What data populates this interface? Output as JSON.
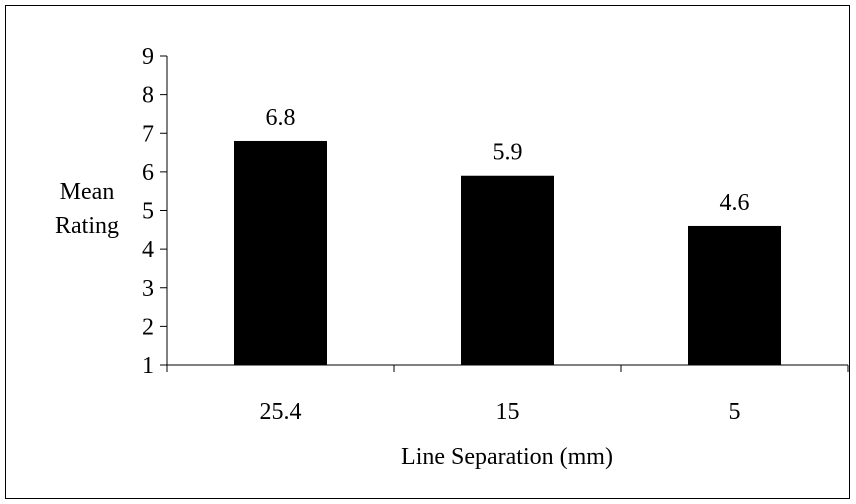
{
  "chart_data": {
    "type": "bar",
    "title": "",
    "xlabel": "Line Separation (mm)",
    "ylabel": "Mean\nRating",
    "ylabel_lines": [
      "Mean",
      "Rating"
    ],
    "categories": [
      "25.4",
      "15",
      "5"
    ],
    "values": [
      6.8,
      5.9,
      4.6
    ],
    "data_labels": [
      "6.8",
      "5.9",
      "4.6"
    ],
    "ylim": [
      1,
      9
    ],
    "yticks": [
      1,
      2,
      3,
      4,
      5,
      6,
      7,
      8,
      9
    ],
    "grid": false,
    "legend": "none",
    "bar_color": "#000000"
  }
}
